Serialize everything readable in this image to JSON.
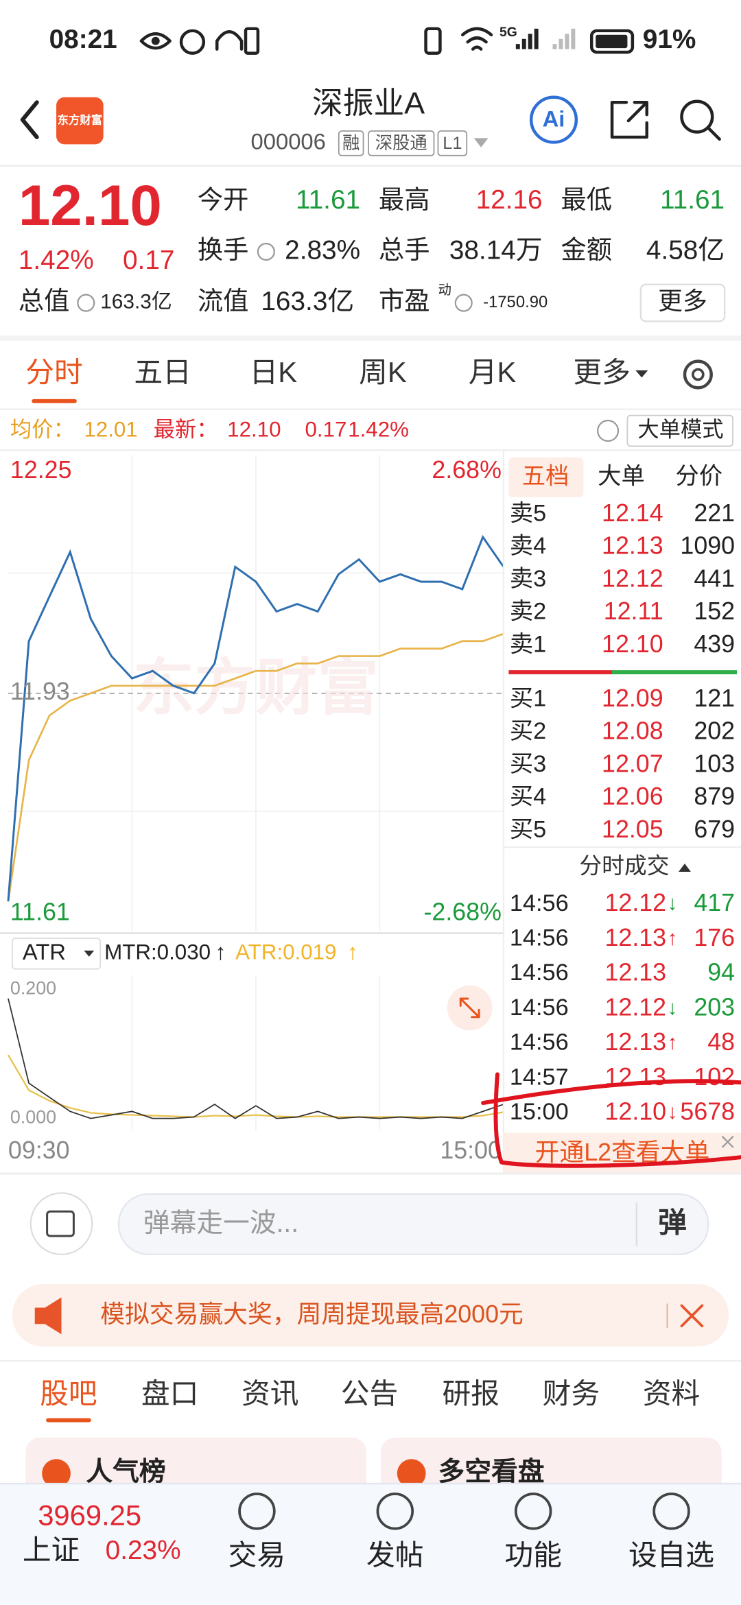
{
  "status_bar": {
    "time": "08:21",
    "network": "5G",
    "battery": "91%"
  },
  "header": {
    "logo": "东方财富",
    "title": "深振业A",
    "code": "000006",
    "tags": [
      "融",
      "深股通",
      "L1"
    ]
  },
  "quote": {
    "price": "12.10",
    "change_pct": "1.42%",
    "change": "0.17",
    "fields": [
      {
        "label": "今开",
        "value": "11.61",
        "color": "#1a9a3a"
      },
      {
        "label": "最高",
        "value": "12.16",
        "color": "#e2262f"
      },
      {
        "label": "最低",
        "value": "11.61",
        "color": "#1a9a3a"
      },
      {
        "label": "换手",
        "value": "2.83%"
      },
      {
        "label": "总手",
        "value": "38.14万"
      },
      {
        "label": "金额",
        "value": "4.58亿"
      },
      {
        "label": "总值",
        "value": "163.3亿"
      },
      {
        "label": "流值",
        "value": "163.3亿"
      },
      {
        "label": "市盈",
        "sup": "动",
        "value": "-1750.90"
      }
    ],
    "more": "更多"
  },
  "tabs": {
    "items": [
      "分时",
      "五日",
      "日K",
      "周K",
      "月K",
      "更多"
    ],
    "active": 0
  },
  "info": {
    "avg_label": "均价：",
    "avg": "12.01",
    "latest_label": "最新：",
    "latest": "12.10",
    "change": "0.17",
    "change_pct": "1.42%",
    "mode": "大单模式"
  },
  "intraday": {
    "ylim": [
      11.61,
      12.25
    ],
    "prev_close": 11.93,
    "pct_top": "2.68%",
    "pct_bottom": "-2.68%",
    "time_start": "09:30",
    "time_end": "15:00",
    "price": [
      11.65,
      12.0,
      12.06,
      12.12,
      12.03,
      11.98,
      11.95,
      11.96,
      11.94,
      11.93,
      11.97,
      12.1,
      12.08,
      12.04,
      12.05,
      12.04,
      12.09,
      12.11,
      12.08,
      12.09,
      12.08,
      12.08,
      12.07,
      12.14,
      12.1
    ],
    "avg": [
      11.65,
      11.84,
      11.9,
      11.92,
      11.93,
      11.94,
      11.94,
      11.94,
      11.94,
      11.94,
      11.94,
      11.95,
      11.96,
      11.96,
      11.97,
      11.97,
      11.98,
      11.98,
      11.98,
      11.99,
      11.99,
      11.99,
      12.0,
      12.0,
      12.01
    ]
  },
  "indicator": {
    "selector": "ATR",
    "mtr": "MTR:0.030",
    "atr": "ATR:0.019",
    "ylim": [
      {
        "value": 0,
        "label": "0.000"
      },
      {
        "value": 0.2,
        "label": "0.200"
      }
    ],
    "mtr_values": [
      0.18,
      0.06,
      0.04,
      0.02,
      0.01,
      0.015,
      0.02,
      0.01,
      0.01,
      0.012,
      0.03,
      0.01,
      0.028,
      0.01,
      0.012,
      0.02,
      0.01,
      0.012,
      0.01,
      0.012,
      0.01,
      0.012,
      0.01,
      0.02,
      0.03
    ],
    "atr_values": [
      0.1,
      0.05,
      0.035,
      0.025,
      0.018,
      0.016,
      0.015,
      0.014,
      0.013,
      0.012,
      0.014,
      0.013,
      0.015,
      0.013,
      0.012,
      0.013,
      0.012,
      0.012,
      0.012,
      0.012,
      0.012,
      0.012,
      0.012,
      0.014,
      0.019
    ]
  },
  "order_book": {
    "tabs": [
      "五档",
      "大单",
      "分价"
    ],
    "asks": [
      {
        "label": "卖5",
        "price": "12.14",
        "volume": "221"
      },
      {
        "label": "卖4",
        "price": "12.13",
        "volume": "1090"
      },
      {
        "label": "卖3",
        "price": "12.12",
        "volume": "441"
      },
      {
        "label": "卖2",
        "price": "12.11",
        "volume": "152"
      },
      {
        "label": "卖1",
        "price": "12.10",
        "volume": "439"
      }
    ],
    "bids": [
      {
        "label": "买1",
        "price": "12.09",
        "volume": "121"
      },
      {
        "label": "买2",
        "price": "12.08",
        "volume": "202"
      },
      {
        "label": "买3",
        "price": "12.07",
        "volume": "103"
      },
      {
        "label": "买4",
        "price": "12.06",
        "volume": "879"
      },
      {
        "label": "买5",
        "price": "12.05",
        "volume": "679"
      }
    ]
  },
  "trades": {
    "title": "分时成交",
    "rows": [
      {
        "time": "14:56",
        "price": "12.12",
        "arrow": "↓",
        "volume": "417",
        "color": "#1a9a3a"
      },
      {
        "time": "14:56",
        "price": "12.13",
        "arrow": "↑",
        "volume": "176",
        "color": "#e2262f"
      },
      {
        "time": "14:56",
        "price": "12.13",
        "volume": "94",
        "color": "#1a9a3a"
      },
      {
        "time": "14:56",
        "price": "12.12",
        "arrow": "↓",
        "volume": "203",
        "color": "#1a9a3a"
      },
      {
        "time": "14:56",
        "price": "12.13",
        "arrow": "↑",
        "volume": "48",
        "color": "#e2262f"
      },
      {
        "time": "14:57",
        "price": "12.13",
        "volume": "102",
        "color": "#e2262f"
      },
      {
        "time": "15:00",
        "price": "12.10",
        "arrow": "↓",
        "volume": "5678",
        "color": "#e2262f"
      }
    ]
  },
  "l2_promo": "开通L2查看大单",
  "comment": {
    "placeholder": "弹幕走一波...",
    "button": "弹"
  },
  "ad": "模拟交易赢大奖，周周提现最高2000元",
  "section_tabs": {
    "items": [
      "股吧",
      "盘口",
      "资讯",
      "公告",
      "研报",
      "财务",
      "资料"
    ],
    "active": 0
  },
  "cards": [
    "人气榜",
    "多空看盘"
  ],
  "bottom_nav": {
    "index_value": "3969.25",
    "index_name": "上证",
    "index_change": "0.23%",
    "items": [
      "交易",
      "发帖",
      "功能",
      "设自选"
    ]
  }
}
